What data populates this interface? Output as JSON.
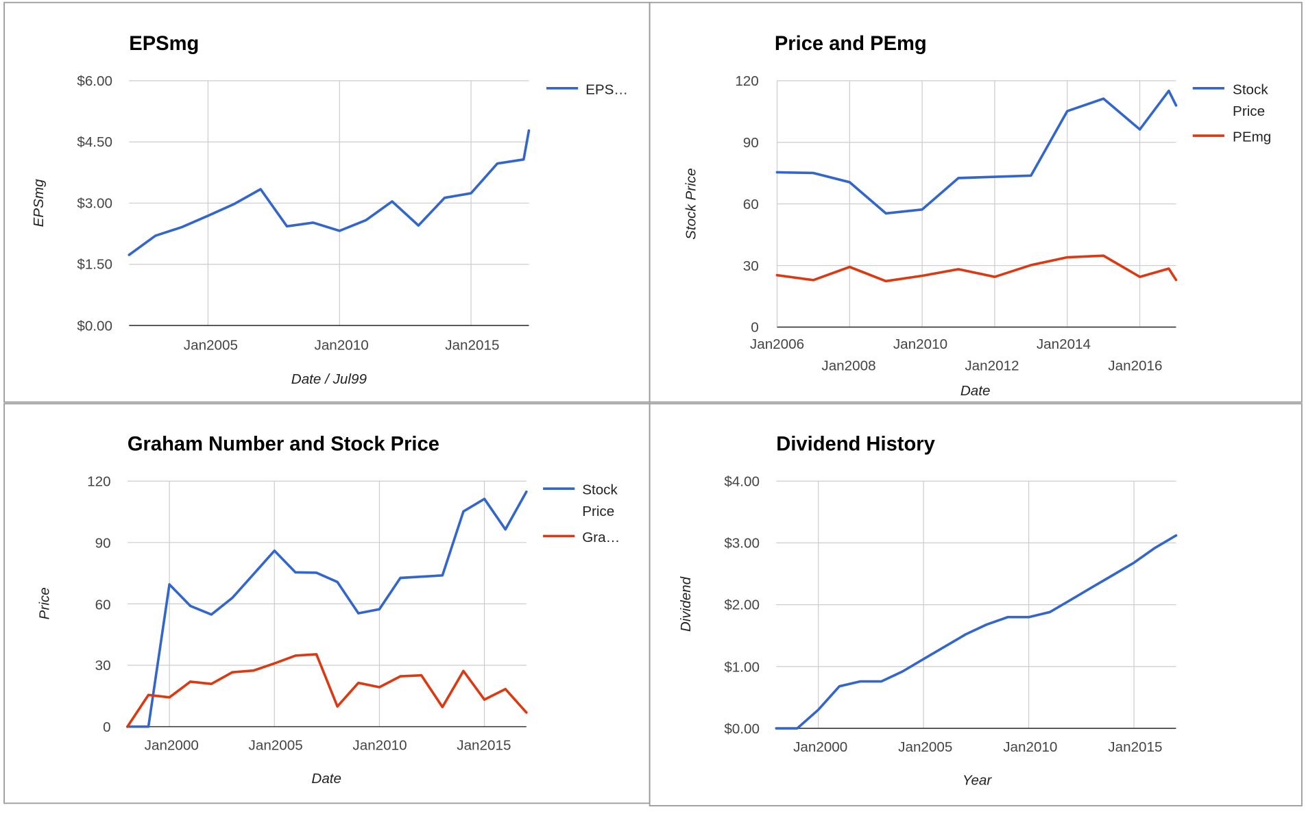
{
  "colors": {
    "blue": "#3366cc",
    "red": "#dc3912",
    "grid": "#cccccc",
    "border": "#9a9a9a"
  },
  "chart_data": [
    {
      "type": "line",
      "title": "EPSmg",
      "xlabel": "Date / Jul99",
      "ylabel": "EPSmg",
      "x_range": [
        2002.0,
        2017.2
      ],
      "ylim": [
        0,
        6
      ],
      "y_ticks": [
        "$0.00",
        "$1.50",
        "$3.00",
        "$4.50",
        "$6.00"
      ],
      "x_ticks": [
        "Jan2005",
        "Jan2010",
        "Jan2015"
      ],
      "legend": "right",
      "series": [
        {
          "name": "EPS…",
          "color": "#3366cc",
          "x": [
            2002.0,
            2003.0,
            2004.0,
            2005.0,
            2006.0,
            2007.0,
            2008.0,
            2009.0,
            2010.0,
            2011.0,
            2012.0,
            2013.0,
            2014.0,
            2015.0,
            2016.0,
            2017.0,
            2017.2
          ],
          "values": [
            1.73,
            2.2,
            2.41,
            2.69,
            2.98,
            3.34,
            2.43,
            2.52,
            2.32,
            2.58,
            3.04,
            2.45,
            3.13,
            3.24,
            3.97,
            4.07,
            4.78
          ]
        }
      ]
    },
    {
      "type": "line",
      "title": "Price and PEmg",
      "xlabel": "Date",
      "ylabel": "Stock Price",
      "x_range": [
        2006.0,
        2017.0
      ],
      "ylim": [
        0,
        120
      ],
      "y_ticks": [
        "0",
        "30",
        "60",
        "90",
        "120"
      ],
      "x_ticks_row1": [
        "Jan2006",
        "Jan2010",
        "Jan2014"
      ],
      "x_ticks_row2": [
        "Jan2008",
        "Jan2012",
        "Jan2016"
      ],
      "legend": "right",
      "series": [
        {
          "name_lines": [
            "Stock",
            "Price"
          ],
          "color": "#3366cc",
          "x": [
            2006.0,
            2007.0,
            2008.0,
            2009.0,
            2010.0,
            2011.0,
            2012.0,
            2013.0,
            2014.0,
            2015.0,
            2016.0,
            2016.8,
            2017.0
          ],
          "values": [
            75.4,
            75.1,
            70.6,
            55.4,
            57.3,
            72.6,
            73.2,
            73.8,
            105.2,
            111.3,
            96.3,
            115.1,
            108.0
          ]
        },
        {
          "name_lines": [
            "PEmg"
          ],
          "color": "#dc3912",
          "x": [
            2006.0,
            2007.0,
            2008.0,
            2009.0,
            2010.0,
            2011.0,
            2012.0,
            2013.0,
            2014.0,
            2015.0,
            2016.0,
            2016.8,
            2017.0
          ],
          "values": [
            25.3,
            22.9,
            29.3,
            22.4,
            25.0,
            28.2,
            24.5,
            30.2,
            34.0,
            34.8,
            24.5,
            28.5,
            23.0
          ]
        }
      ]
    },
    {
      "type": "line",
      "title": "Graham Number and Stock Price",
      "xlabel": "Date",
      "ylabel": "Price",
      "x_range": [
        1998.0,
        2017.0
      ],
      "ylim": [
        0,
        120
      ],
      "y_ticks": [
        "0",
        "30",
        "60",
        "90",
        "120"
      ],
      "x_ticks": [
        "Jan2000",
        "Jan2005",
        "Jan2010",
        "Jan2015"
      ],
      "legend": "right",
      "series": [
        {
          "name_lines": [
            "Stock",
            "Price"
          ],
          "color": "#3366cc",
          "x": [
            1998.0,
            1999.0,
            2000.0,
            2001.0,
            2002.0,
            2003.0,
            2004.0,
            2005.0,
            2006.0,
            2007.0,
            2008.0,
            2009.0,
            2010.0,
            2011.0,
            2012.0,
            2013.0,
            2014.0,
            2015.0,
            2016.0,
            2017.0
          ],
          "values": [
            0,
            0,
            69.5,
            59.0,
            54.8,
            63.0,
            74.5,
            86.0,
            75.4,
            75.2,
            70.7,
            55.4,
            57.4,
            72.7,
            73.3,
            73.9,
            105.2,
            111.3,
            96.4,
            114.8
          ]
        },
        {
          "name_lines": [
            "Gra…"
          ],
          "color": "#dc3912",
          "x": [
            1998.0,
            1999.0,
            2000.0,
            2001.0,
            2002.0,
            2003.0,
            2004.0,
            2005.0,
            2006.0,
            2007.0,
            2008.0,
            2009.0,
            2010.0,
            2011.0,
            2012.0,
            2013.0,
            2014.0,
            2015.0,
            2016.0,
            2017.0
          ],
          "values": [
            0,
            15.5,
            14.3,
            22.0,
            20.9,
            26.6,
            27.4,
            30.9,
            34.7,
            35.4,
            9.9,
            21.4,
            19.3,
            24.6,
            25.1,
            9.6,
            27.2,
            13.2,
            18.4,
            6.9
          ]
        }
      ]
    },
    {
      "type": "line",
      "title": "Dividend History",
      "xlabel": "Year",
      "ylabel": "Dividend",
      "x_range": [
        1998.0,
        2017.0
      ],
      "ylim": [
        0,
        4
      ],
      "y_ticks": [
        "$0.00",
        "$1.00",
        "$2.00",
        "$3.00",
        "$4.00"
      ],
      "x_ticks": [
        "Jan2000",
        "Jan2005",
        "Jan2010",
        "Jan2015"
      ],
      "legend": "none",
      "series": [
        {
          "name": "",
          "color": "#3366cc",
          "x": [
            1998.0,
            1999.0,
            2000.0,
            2001.0,
            2002.0,
            2003.0,
            2004.0,
            2005.0,
            2006.0,
            2007.0,
            2008.0,
            2009.0,
            2010.0,
            2011.0,
            2012.0,
            2013.0,
            2014.0,
            2015.0,
            2016.0,
            2017.0
          ],
          "values": [
            0,
            0,
            0.3,
            0.68,
            0.76,
            0.76,
            0.92,
            1.12,
            1.32,
            1.52,
            1.68,
            1.8,
            1.8,
            1.88,
            2.08,
            2.28,
            2.48,
            2.68,
            2.92,
            3.12
          ]
        }
      ]
    }
  ]
}
